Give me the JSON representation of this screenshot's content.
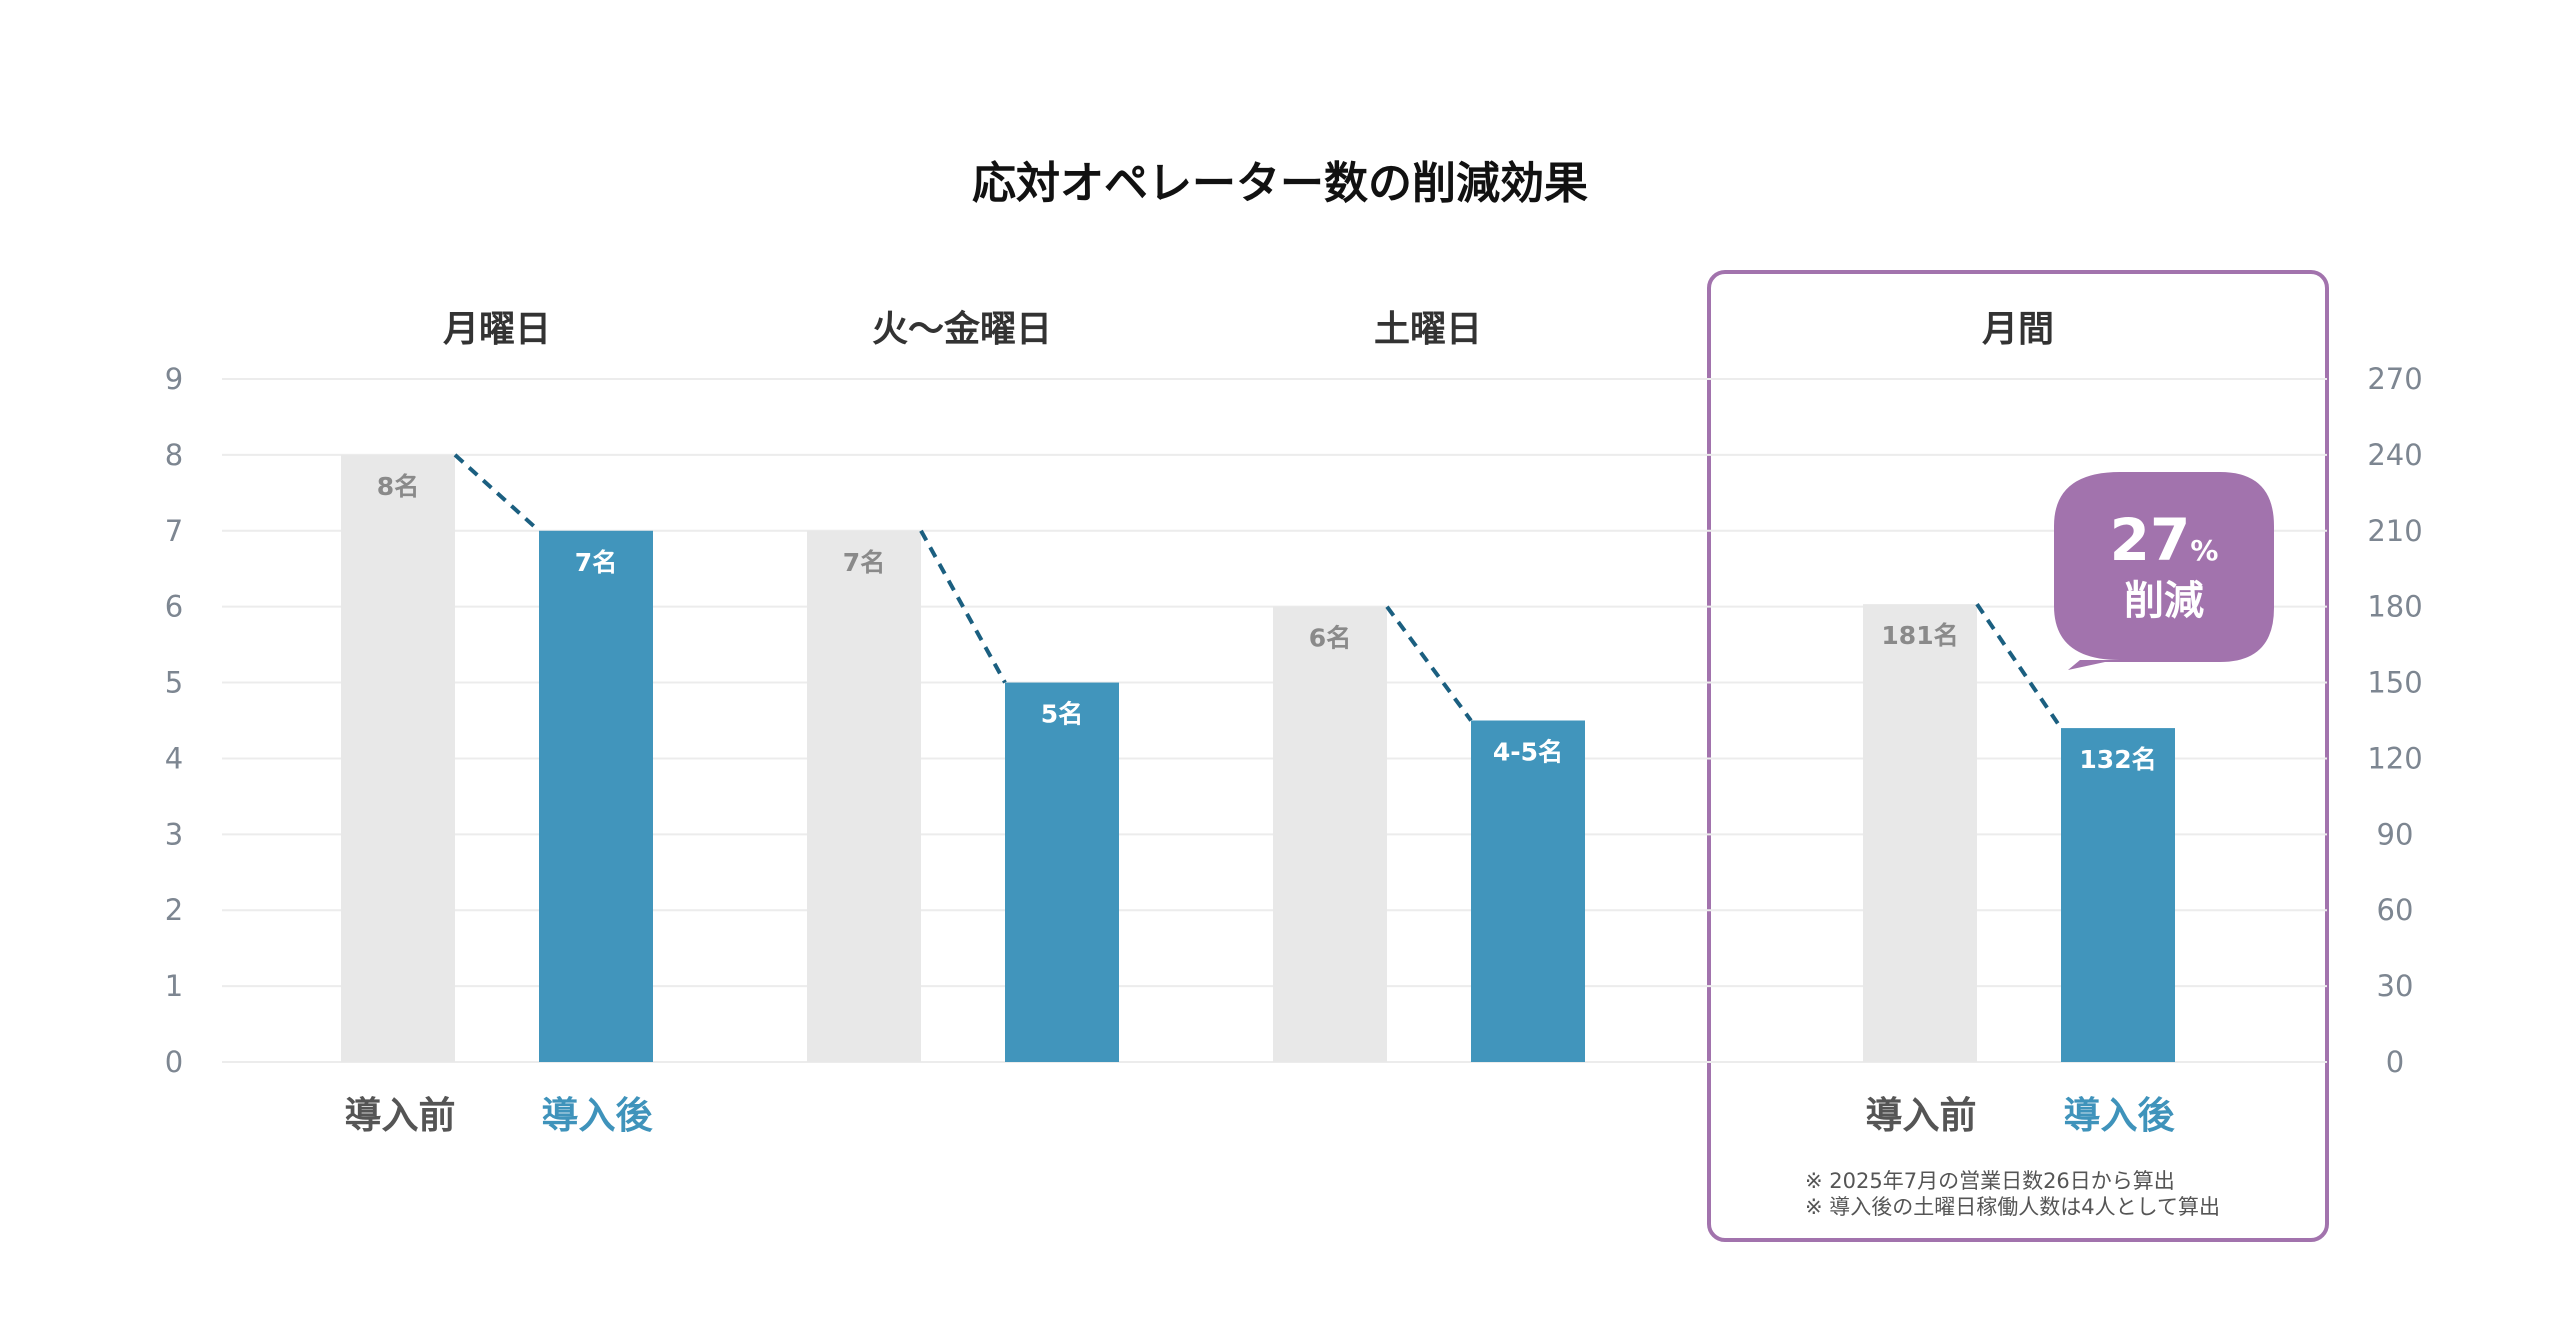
{
  "chart_data": {
    "type": "bar",
    "title": "応対オペレーター数の削減効果",
    "left_axis": {
      "ylim": [
        0,
        9
      ],
      "ticks": [
        "0",
        "1",
        "2",
        "3",
        "4",
        "5",
        "6",
        "7",
        "8",
        "9"
      ]
    },
    "right_axis": {
      "ylim": [
        0,
        270
      ],
      "ticks": [
        "0",
        "30",
        "60",
        "90",
        "120",
        "150",
        "180",
        "210",
        "240",
        "270"
      ]
    },
    "series": [
      {
        "name": "導入前",
        "color": "#e8e8e8"
      },
      {
        "name": "導入後",
        "color": "#4195bc"
      }
    ],
    "groups": [
      {
        "category": "月曜日",
        "axis": "left",
        "before": 8,
        "after": 7,
        "before_label": "8名",
        "after_label": "7名"
      },
      {
        "category": "火～金曜日",
        "axis": "left",
        "before": 7,
        "after": 5,
        "before_label": "7名",
        "after_label": "5名"
      },
      {
        "category": "土曜日",
        "axis": "left",
        "before": 6,
        "after": 4.5,
        "before_label": "6名",
        "after_label": "4-5名"
      },
      {
        "category": "月間",
        "axis": "right",
        "before": 181,
        "after": 132,
        "before_label": "181名",
        "after_label": "132名"
      }
    ],
    "legend_left": {
      "before": "導入前",
      "after": "導入後"
    },
    "legend_right": {
      "before": "導入前",
      "after": "導入後"
    },
    "callout": {
      "value": "27",
      "unit": "%",
      "text": "削減"
    },
    "notes": [
      "※ 2025年7月の営業日数26日から算出",
      "※ 導入後の土曜日稼働人数は4人として算出"
    ],
    "highlight_color": "#a273ad",
    "connector_color": "#1b5f80"
  }
}
